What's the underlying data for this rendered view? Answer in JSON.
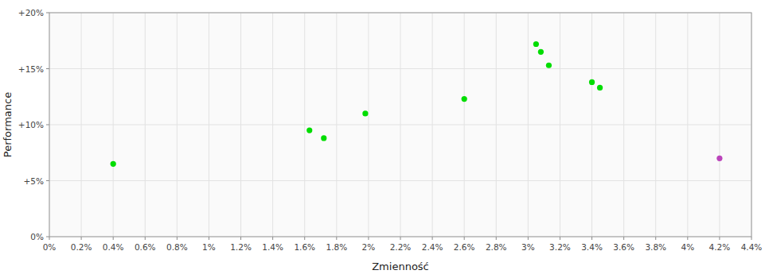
{
  "chart_data": {
    "type": "scatter",
    "xlabel": "Zmienność",
    "ylabel": "Performance",
    "xlim": [
      0.0,
      0.044
    ],
    "ylim": [
      0.0,
      0.2
    ],
    "xticks": [
      {
        "value": 0.0,
        "label": "0%"
      },
      {
        "value": 0.002,
        "label": "0.2%"
      },
      {
        "value": 0.004,
        "label": "0.4%"
      },
      {
        "value": 0.006,
        "label": "0.6%"
      },
      {
        "value": 0.008,
        "label": "0.8%"
      },
      {
        "value": 0.01,
        "label": "1%"
      },
      {
        "value": 0.012,
        "label": "1.2%"
      },
      {
        "value": 0.014,
        "label": "1.4%"
      },
      {
        "value": 0.016,
        "label": "1.6%"
      },
      {
        "value": 0.018,
        "label": "1.8%"
      },
      {
        "value": 0.02,
        "label": "2%"
      },
      {
        "value": 0.022,
        "label": "2.2%"
      },
      {
        "value": 0.024,
        "label": "2.4%"
      },
      {
        "value": 0.026,
        "label": "2.6%"
      },
      {
        "value": 0.028,
        "label": "2.8%"
      },
      {
        "value": 0.03,
        "label": "3%"
      },
      {
        "value": 0.032,
        "label": "3.2%"
      },
      {
        "value": 0.034,
        "label": "3.4%"
      },
      {
        "value": 0.036,
        "label": "3.6%"
      },
      {
        "value": 0.038,
        "label": "3.8%"
      },
      {
        "value": 0.04,
        "label": "4%"
      },
      {
        "value": 0.042,
        "label": "4.2%"
      },
      {
        "value": 0.044,
        "label": "4.4%"
      }
    ],
    "yticks": [
      {
        "value": 0.0,
        "label": "0%"
      },
      {
        "value": 0.05,
        "label": "+5%"
      },
      {
        "value": 0.1,
        "label": "+10%"
      },
      {
        "value": 0.15,
        "label": "+15%"
      },
      {
        "value": 0.2,
        "label": "+20%"
      }
    ],
    "grid": true,
    "series": [
      {
        "color": "#00dd00",
        "x": [
          0.004,
          0.0163,
          0.0172,
          0.0198,
          0.026,
          0.0305,
          0.0308,
          0.0313,
          0.034,
          0.0345
        ],
        "values": [
          0.065,
          0.095,
          0.088,
          0.11,
          0.123,
          0.172,
          0.165,
          0.153,
          0.138,
          0.133
        ]
      },
      {
        "color": "#bb44bb",
        "x": [
          0.042
        ],
        "values": [
          0.07
        ]
      }
    ]
  }
}
